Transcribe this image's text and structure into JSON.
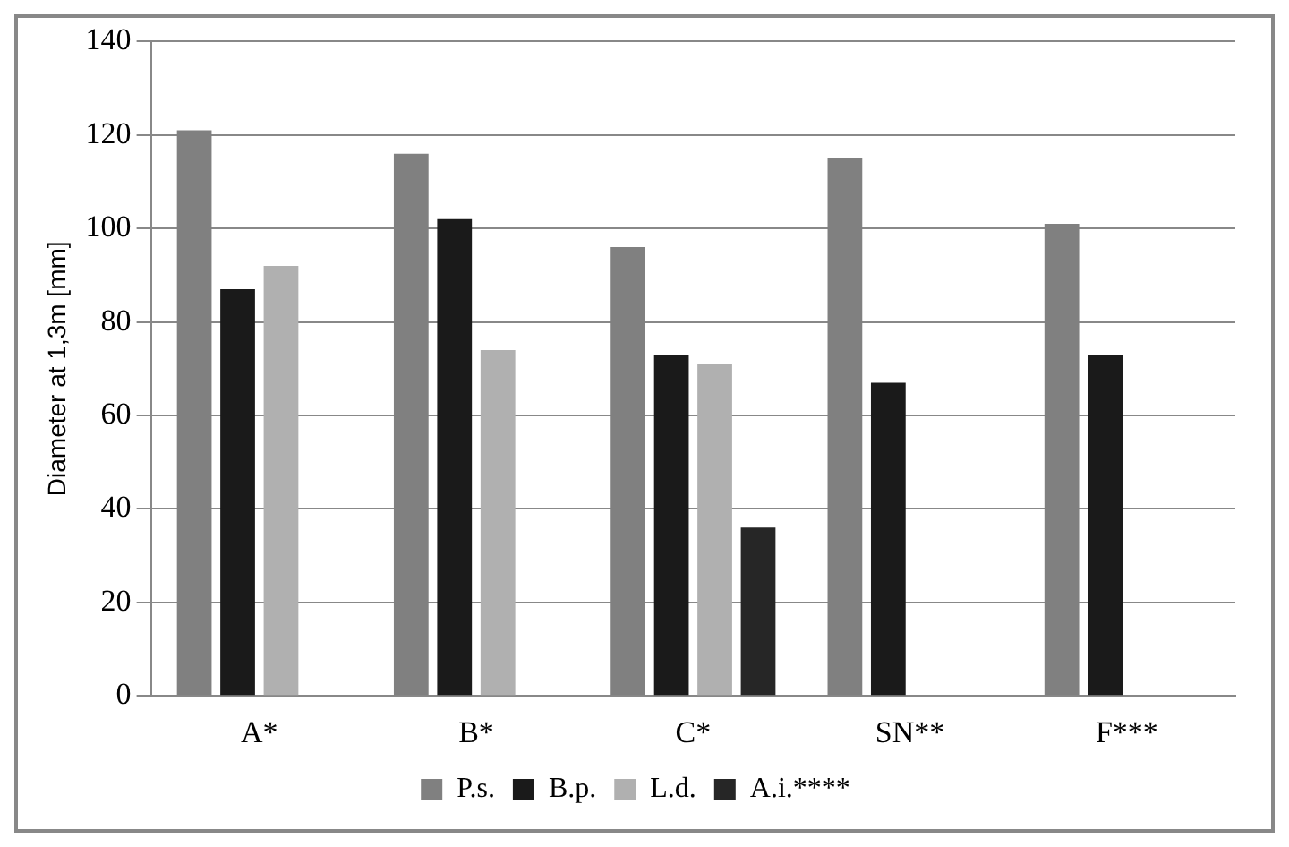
{
  "chart_data": {
    "type": "bar",
    "ylabel": "Diameter at 1,3m [mm]",
    "categories": [
      "A*",
      "B*",
      "C*",
      "SN**",
      "F***"
    ],
    "series": [
      {
        "name": "P.s.",
        "color": "#808080",
        "values": [
          121,
          116,
          96,
          115,
          101
        ]
      },
      {
        "name": "B.p.",
        "color": "#1a1a1a",
        "values": [
          87,
          102,
          73,
          67,
          73
        ]
      },
      {
        "name": "L.d.",
        "color": "#b0b0b0",
        "values": [
          92,
          74,
          71,
          null,
          null
        ]
      },
      {
        "name": "A.i.****",
        "color": "#262626",
        "values": [
          null,
          null,
          36,
          null,
          null
        ]
      }
    ],
    "ylim": [
      0,
      140
    ],
    "yticks": [
      0,
      20,
      40,
      60,
      80,
      100,
      120,
      140
    ],
    "grid": "y",
    "legend": "bottom"
  }
}
